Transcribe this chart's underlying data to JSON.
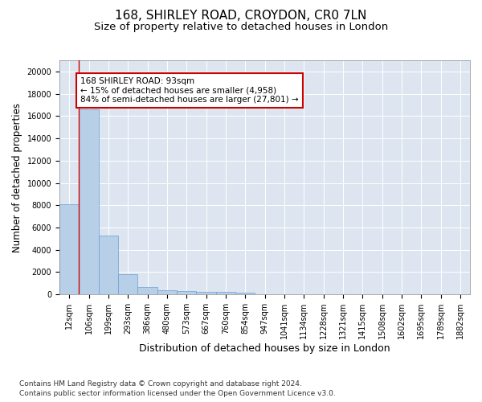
{
  "title_line1": "168, SHIRLEY ROAD, CROYDON, CR0 7LN",
  "title_line2": "Size of property relative to detached houses in London",
  "xlabel": "Distribution of detached houses by size in London",
  "ylabel": "Number of detached properties",
  "bar_labels": [
    "12sqm",
    "106sqm",
    "199sqm",
    "293sqm",
    "386sqm",
    "480sqm",
    "573sqm",
    "667sqm",
    "760sqm",
    "854sqm",
    "947sqm",
    "1041sqm",
    "1134sqm",
    "1228sqm",
    "1321sqm",
    "1415sqm",
    "1508sqm",
    "1602sqm",
    "1695sqm",
    "1789sqm",
    "1882sqm"
  ],
  "bar_heights": [
    8100,
    16600,
    5300,
    1850,
    700,
    370,
    280,
    230,
    200,
    170,
    0,
    0,
    0,
    0,
    0,
    0,
    0,
    0,
    0,
    0,
    0
  ],
  "bar_color": "#b8cfe8",
  "bar_edge_color": "#6a9fd8",
  "vline_color": "#cc0000",
  "annotation_text": "168 SHIRLEY ROAD: 93sqm\n← 15% of detached houses are smaller (4,958)\n84% of semi-detached houses are larger (27,801) →",
  "annotation_box_color": "#ffffff",
  "annotation_box_edge_color": "#cc0000",
  "ylim": [
    0,
    21000
  ],
  "yticks": [
    0,
    2000,
    4000,
    6000,
    8000,
    10000,
    12000,
    14000,
    16000,
    18000,
    20000
  ],
  "footnote1": "Contains HM Land Registry data © Crown copyright and database right 2024.",
  "footnote2": "Contains public sector information licensed under the Open Government Licence v3.0.",
  "bg_color": "#dde6f0",
  "title1_fontsize": 11,
  "title2_fontsize": 9.5,
  "xlabel_fontsize": 9,
  "ylabel_fontsize": 8.5,
  "tick_fontsize": 7,
  "footnote_fontsize": 6.5,
  "annotation_fontsize": 7.5
}
